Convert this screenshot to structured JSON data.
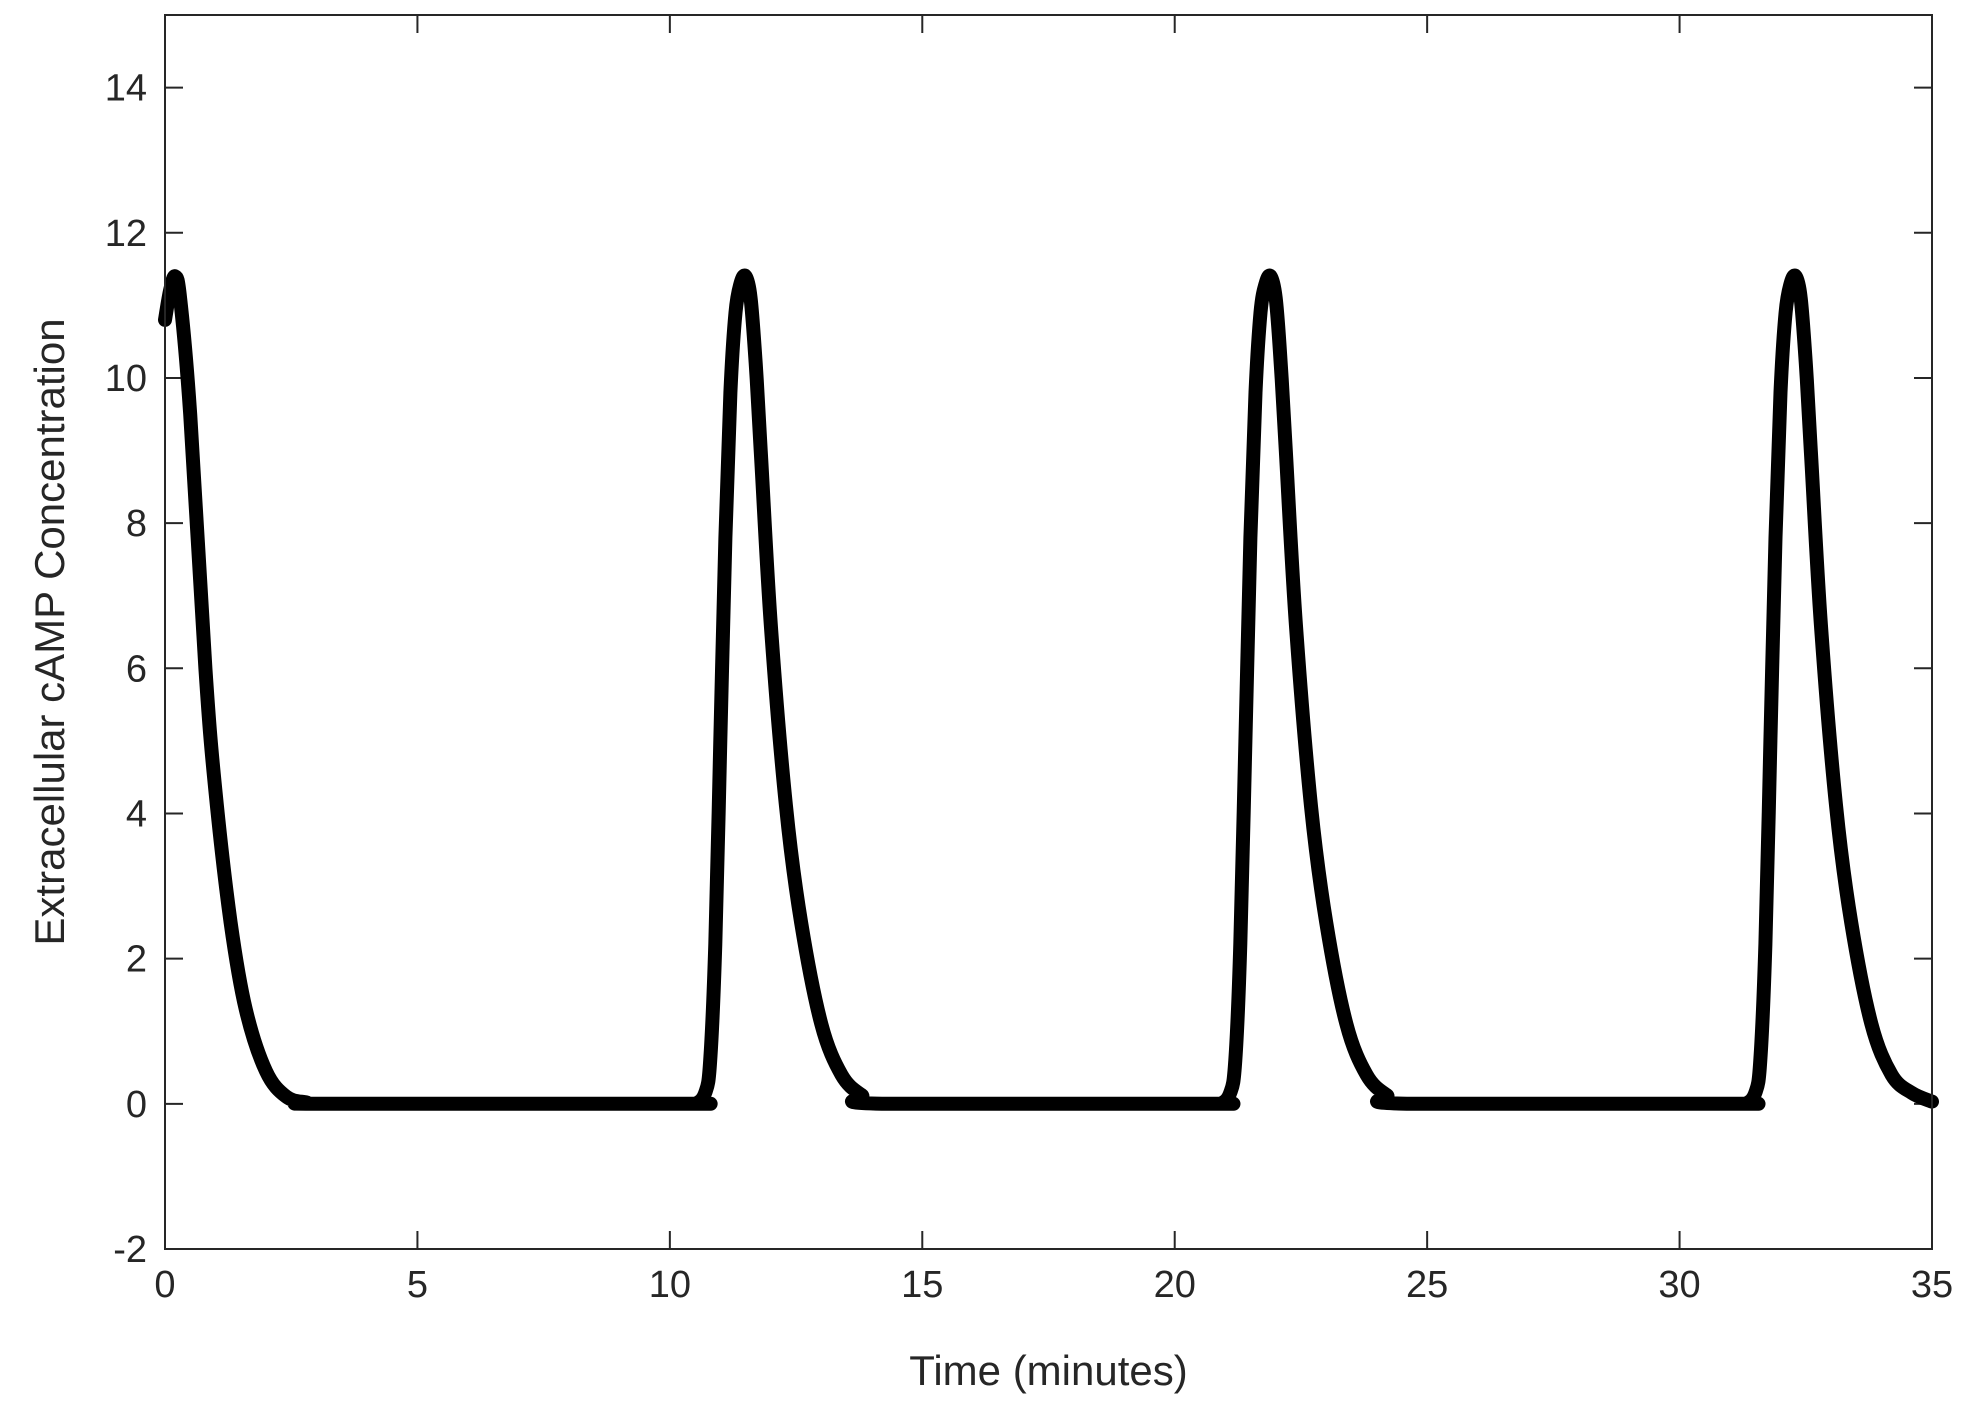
{
  "chart_data": {
    "type": "line",
    "title": "",
    "xlabel": "Time (minutes)",
    "ylabel": "Extracellular cAMP Concentration",
    "xlim": [
      0,
      35
    ],
    "ylim": [
      -2,
      15
    ],
    "xticks": [
      "0",
      "5",
      "10",
      "15",
      "20",
      "25",
      "30",
      "35"
    ],
    "yticks": [
      "-2",
      "0",
      "2",
      "4",
      "6",
      "8",
      "10",
      "12",
      "14"
    ],
    "grid": false,
    "legend": "none",
    "series_color": "#000000",
    "series": [
      {
        "x": [
          0,
          0.1,
          0.2,
          0.3,
          0.5,
          0.8,
          1.0,
          1.3,
          1.6,
          2.0,
          2.4,
          2.8,
          3.2,
          10.2,
          10.5,
          10.7,
          10.8,
          10.9,
          11.0,
          11.1,
          11.2,
          11.3,
          11.4,
          11.5,
          11.6,
          11.7,
          11.8,
          12.0,
          12.3,
          12.6,
          13.0,
          13.4,
          13.8,
          14.2,
          20.6,
          20.9,
          21.1,
          21.2,
          21.3,
          21.4,
          21.5,
          21.6,
          21.7,
          21.8,
          21.9,
          22.0,
          22.1,
          22.2,
          22.4,
          22.7,
          23.0,
          23.4,
          23.8,
          24.2,
          24.6,
          31.0,
          31.3,
          31.5,
          31.6,
          31.7,
          31.8,
          31.9,
          32.0,
          32.1,
          32.2,
          32.3,
          32.4,
          32.5,
          32.6,
          32.8,
          33.1,
          33.4,
          33.8,
          34.2,
          34.6,
          35.0
        ],
        "y": [
          10.8,
          11.2,
          11.4,
          11.1,
          9.5,
          6.0,
          4.3,
          2.5,
          1.3,
          0.45,
          0.1,
          0.02,
          0,
          0,
          0,
          0.15,
          0.6,
          2.2,
          5.0,
          7.8,
          9.8,
          10.9,
          11.3,
          11.4,
          11.1,
          10.2,
          9.0,
          6.6,
          4.1,
          2.5,
          1.1,
          0.4,
          0.12,
          0,
          0,
          0,
          0.15,
          0.6,
          2.2,
          5.0,
          7.8,
          9.8,
          10.9,
          11.3,
          11.4,
          11.1,
          10.2,
          9.0,
          6.6,
          4.1,
          2.5,
          1.1,
          0.4,
          0.12,
          0,
          0,
          0,
          0.15,
          0.6,
          2.2,
          5.0,
          7.8,
          9.8,
          10.9,
          11.3,
          11.4,
          11.1,
          10.2,
          9.0,
          6.6,
          4.1,
          2.5,
          1.1,
          0.4,
          0.15,
          0.03
        ]
      }
    ]
  }
}
